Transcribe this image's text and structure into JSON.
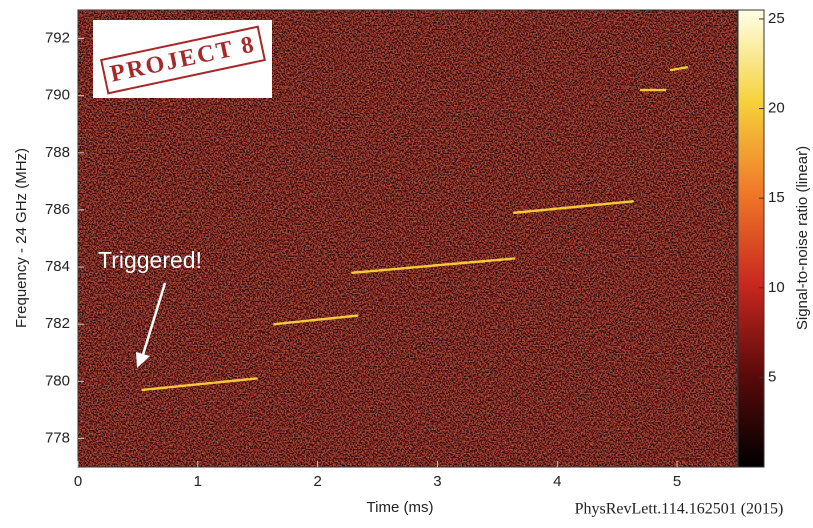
{
  "chart_data": {
    "type": "spectrogram",
    "xlabel": "Time (ms)",
    "ylabel": "Frequency - 24 GHz (MHz)",
    "colorbar_label": "Signal-to-noise ratio (linear)",
    "xlim": [
      0,
      5.5
    ],
    "xticks": [
      0,
      1,
      2,
      3,
      4,
      5
    ],
    "ylim": [
      777,
      793
    ],
    "yticks": [
      778,
      780,
      782,
      784,
      786,
      788,
      790,
      792
    ],
    "clim": [
      0,
      25.5
    ],
    "cticks": [
      5,
      10,
      15,
      20,
      25
    ],
    "colormap": [
      "#000000",
      "#5a0a0a",
      "#c8281e",
      "#f07828",
      "#f5d23c",
      "#ffffe6"
    ],
    "track_color": "#f5c83c",
    "tracks": [
      {
        "x": [
          0.54,
          1.49
        ],
        "y": [
          779.7,
          780.1
        ]
      },
      {
        "x": [
          1.64,
          2.33
        ],
        "y": [
          782.0,
          782.3
        ]
      },
      {
        "x": [
          2.29,
          3.64
        ],
        "y": [
          783.8,
          784.3
        ]
      },
      {
        "x": [
          3.64,
          4.63
        ],
        "y": [
          785.9,
          786.3
        ]
      },
      {
        "x": [
          4.7,
          4.9
        ],
        "y": [
          790.2,
          790.2
        ]
      },
      {
        "x": [
          4.95,
          5.09
        ],
        "y": [
          790.9,
          791.0
        ]
      }
    ],
    "annotation": "Triggered!",
    "logo": "PROJECT 8",
    "citation": "PhysRevLett.114.162501 (2015)"
  }
}
